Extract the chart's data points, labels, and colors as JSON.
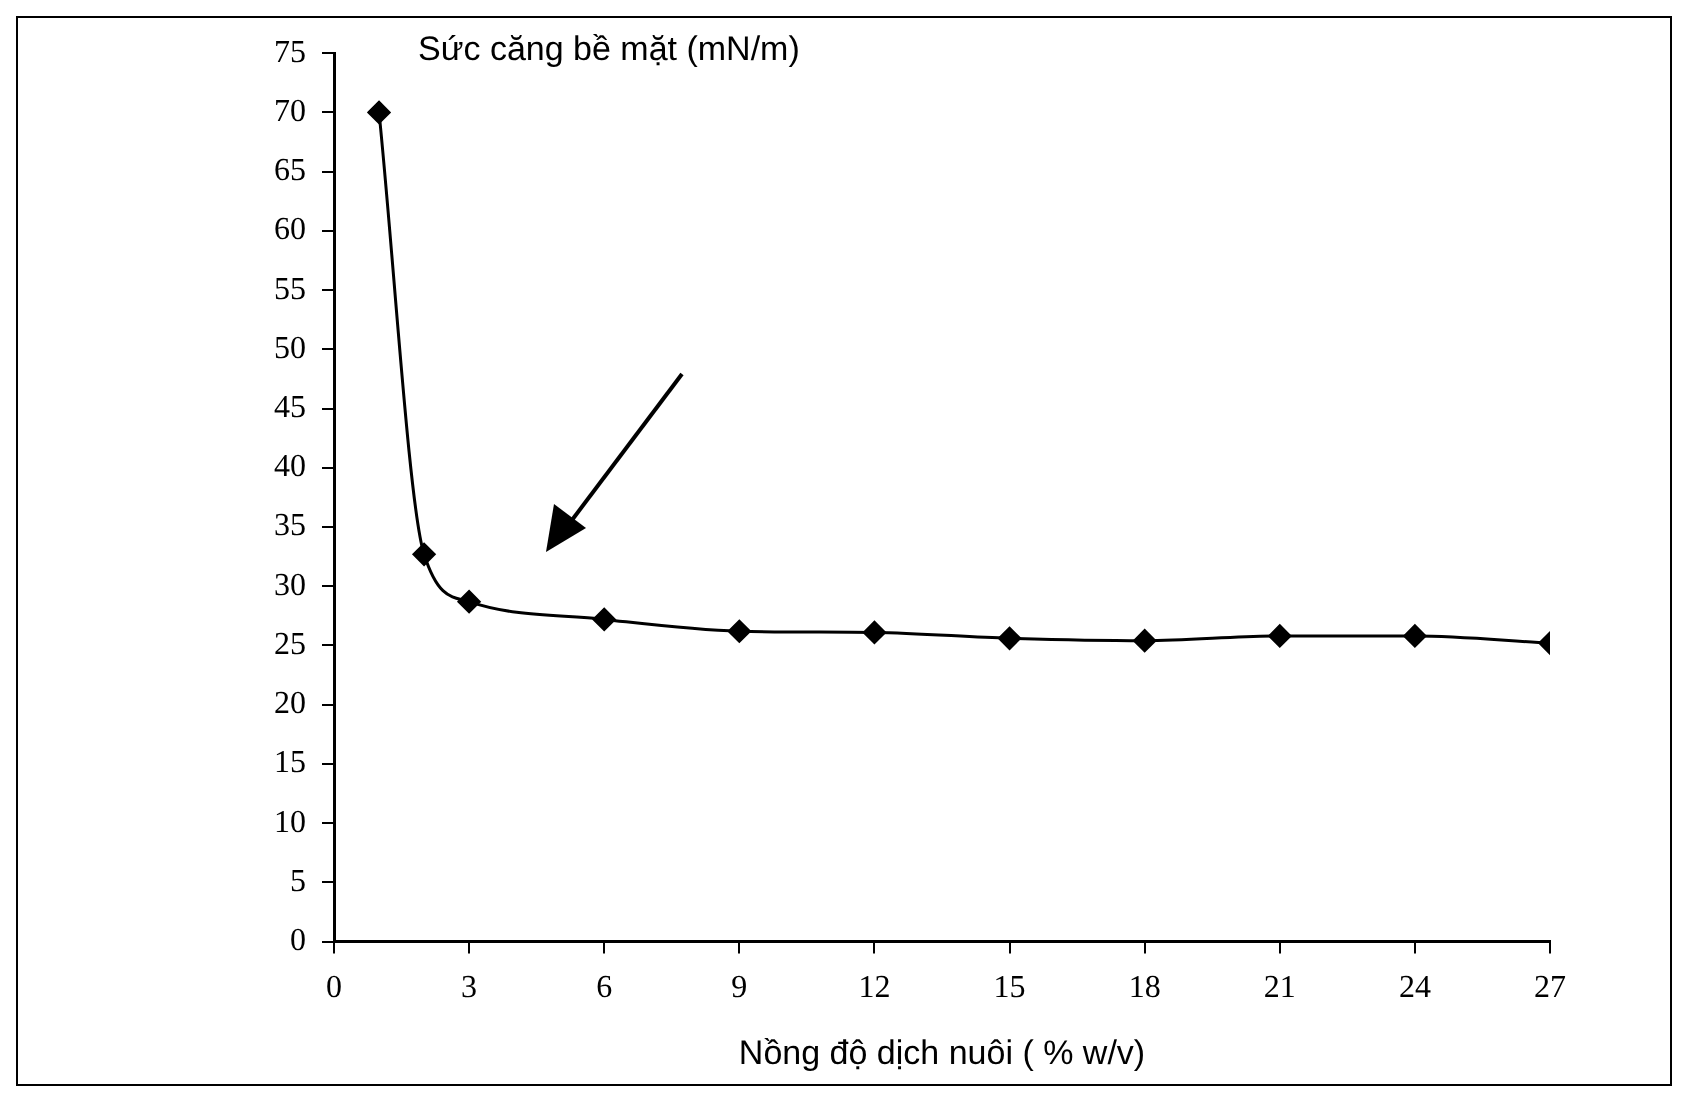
{
  "chart_data": {
    "type": "line",
    "xlabel": "Nồng độ dịch nuôi ( % w/v)",
    "ylabel": "Sức căng bề mặt (mN/m)",
    "x": [
      1,
      2,
      3,
      6,
      9,
      12,
      15,
      18,
      21,
      24,
      27
    ],
    "series": [
      {
        "color": "#000000",
        "values": [
          70,
          32.7,
          28.7,
          27.2,
          26.2,
          26.1,
          25.6,
          25.4,
          25.8,
          25.8,
          25.2
        ]
      }
    ],
    "xlim": [
      0,
      27
    ],
    "xticks": [
      0,
      3,
      6,
      9,
      12,
      15,
      18,
      21,
      24,
      27
    ],
    "ylim": [
      0,
      75
    ],
    "yticks": [
      0,
      5,
      10,
      15,
      20,
      25,
      30,
      35,
      40,
      45,
      50,
      55,
      60,
      65,
      70,
      75
    ],
    "grid": false,
    "legend": false,
    "marker": "diamond",
    "line_style": "solid"
  }
}
